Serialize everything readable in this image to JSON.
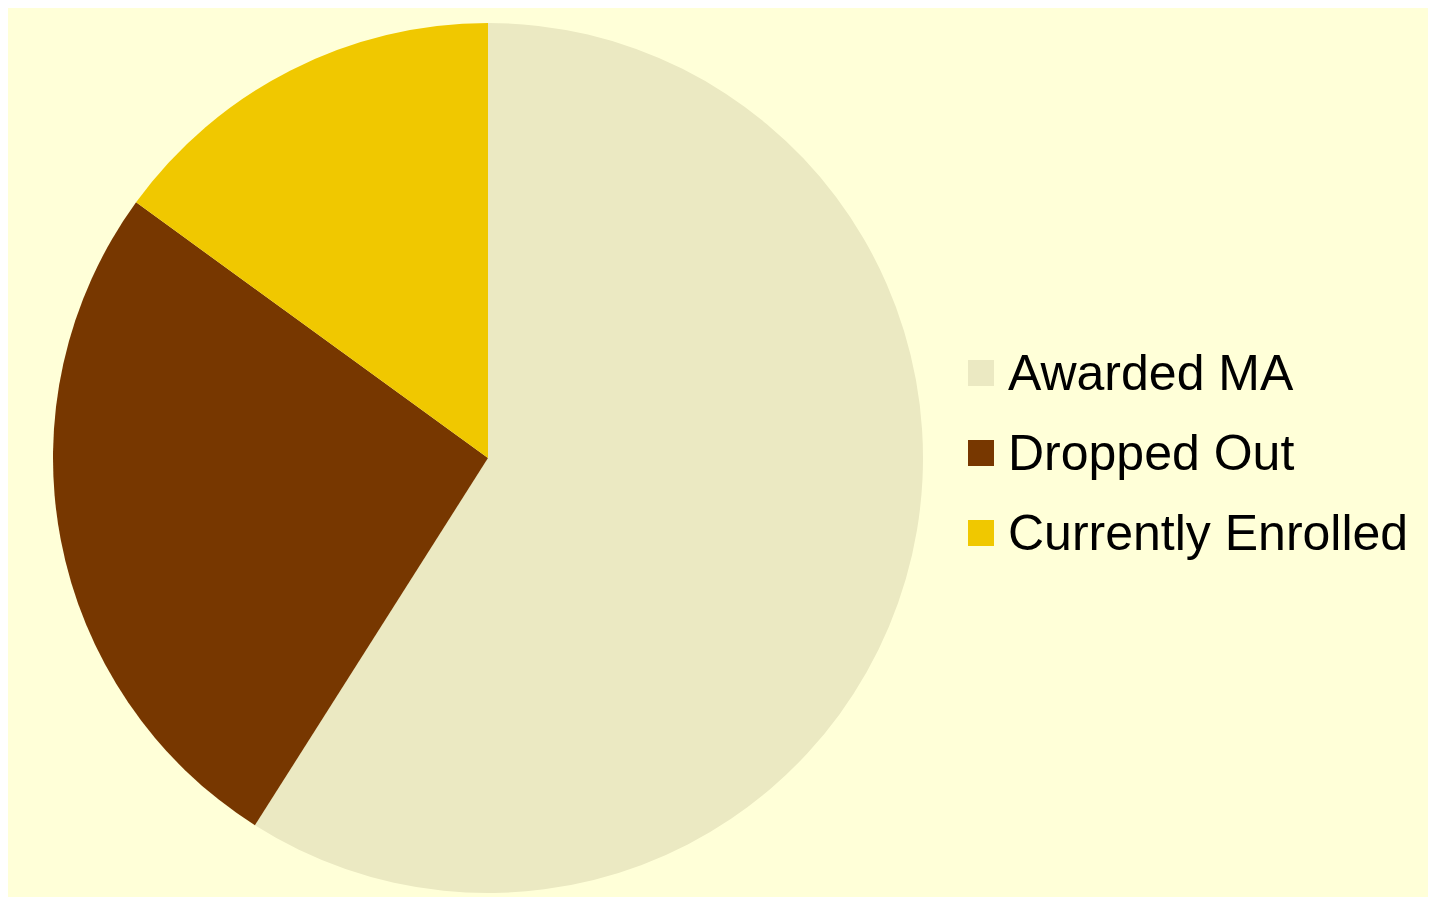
{
  "chart_data": {
    "type": "pie",
    "categories": [
      "Awarded MA",
      "Dropped Out",
      "Currently Enrolled"
    ],
    "values": [
      59,
      26,
      15
    ],
    "colors": [
      "#ebe9c2",
      "#773700",
      "#f0c800"
    ],
    "legend": "right"
  }
}
